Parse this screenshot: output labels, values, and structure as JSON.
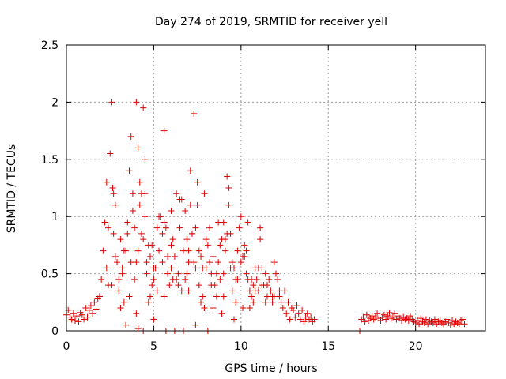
{
  "chart_data": {
    "type": "scatter",
    "title": "Day 274 of 2019, SRMTID for receiver yell",
    "xlabel": "GPS time / hours",
    "ylabel": "SRMTID / TECUs",
    "xlim": [
      0,
      24
    ],
    "ylim": [
      0,
      2.5
    ],
    "xticks": [
      0,
      5,
      10,
      15,
      20
    ],
    "yticks": [
      0,
      0.5,
      1,
      1.5,
      2,
      2.5
    ],
    "xtick_labels": [
      "0",
      "5",
      "10",
      "15",
      "20"
    ],
    "ytick_labels": [
      "0",
      "0.5",
      "1",
      "1.5",
      "2",
      "2.5"
    ],
    "grid": true,
    "marker": "+",
    "color": "#dd0000",
    "series": [
      {
        "name": "SRMTID",
        "x": [
          0.0,
          0.1,
          0.2,
          0.3,
          0.4,
          0.5,
          0.6,
          0.7,
          0.8,
          0.9,
          1.0,
          1.1,
          1.2,
          1.3,
          1.4,
          1.5,
          1.6,
          1.7,
          1.8,
          1.9,
          2.0,
          2.1,
          2.2,
          2.3,
          2.4,
          2.5,
          2.6,
          2.7,
          2.8,
          2.9,
          3.0,
          3.1,
          3.2,
          3.3,
          3.4,
          3.5,
          3.6,
          3.7,
          3.8,
          3.9,
          4.0,
          4.1,
          4.2,
          4.3,
          4.4,
          4.5,
          4.6,
          4.7,
          4.8,
          4.9,
          5.0,
          5.1,
          5.2,
          5.3,
          5.4,
          5.5,
          5.6,
          5.7,
          5.8,
          5.9,
          6.0,
          6.1,
          6.2,
          6.3,
          6.4,
          6.5,
          6.6,
          6.7,
          6.8,
          6.9,
          7.0,
          7.1,
          7.2,
          7.3,
          7.4,
          7.5,
          7.6,
          7.7,
          7.8,
          7.9,
          8.0,
          8.1,
          8.2,
          8.3,
          8.4,
          8.5,
          8.6,
          8.7,
          8.8,
          8.9,
          9.0,
          9.1,
          9.2,
          9.3,
          9.4,
          9.5,
          9.6,
          9.7,
          9.8,
          9.9,
          10.0,
          10.1,
          10.2,
          10.3,
          10.4,
          10.5,
          10.6,
          10.7,
          10.8,
          10.9,
          11.0,
          11.1,
          11.2,
          11.3,
          11.4,
          11.5,
          11.6,
          11.7,
          11.8,
          11.9,
          12.0,
          12.1,
          12.2,
          12.3,
          12.4,
          12.5,
          12.6,
          12.7,
          12.8,
          12.9,
          13.0,
          13.1,
          13.2,
          13.3,
          13.4,
          13.5,
          13.6,
          13.7,
          13.8,
          13.9,
          14.0,
          14.1,
          14.2,
          2.3,
          2.6,
          2.65,
          3.0,
          3.3,
          3.6,
          3.9,
          4.0,
          4.2,
          4.4,
          4.5,
          4.8,
          5.0,
          5.5,
          5.6,
          6.0,
          6.3,
          6.8,
          7.0,
          7.3,
          7.4,
          7.5,
          7.8,
          8.0,
          8.3,
          8.7,
          9.0,
          9.2,
          9.5,
          10.0,
          10.3,
          10.6,
          11.0,
          11.5,
          2.4,
          2.8,
          3.2,
          3.5,
          3.8,
          4.1,
          4.3,
          4.6,
          4.9,
          5.2,
          5.8,
          6.1,
          6.5,
          6.9,
          7.2,
          7.6,
          8.2,
          8.6,
          9.1,
          9.4,
          9.8,
          10.2,
          10.8,
          11.2,
          11.8,
          12.2,
          3.1,
          4.0,
          4.7,
          5.6,
          6.4,
          7.0,
          7.7,
          8.4,
          9.0,
          9.7,
          10.5,
          11.4,
          3.4,
          4.1,
          4.4,
          5.0,
          5.7,
          6.2,
          6.7,
          7.4,
          8.1,
          8.9,
          9.6,
          10.1,
          10.7,
          2.7,
          3.7,
          4.5,
          5.3,
          6.0,
          6.6,
          7.1,
          7.9,
          8.8,
          9.3,
          10.4,
          11.1,
          11.9,
          16.9,
          17.0,
          17.1,
          17.2,
          17.3,
          17.4,
          17.5,
          17.6,
          17.7,
          17.8,
          17.9,
          18.0,
          18.1,
          18.2,
          18.3,
          18.4,
          18.5,
          18.6,
          18.7,
          18.8,
          18.9,
          19.0,
          19.1,
          19.2,
          19.3,
          19.4,
          19.5,
          19.6,
          19.7,
          19.8,
          19.9,
          20.0,
          20.1,
          20.2,
          20.3,
          20.4,
          20.5,
          20.6,
          20.7,
          20.8,
          20.9,
          21.0,
          21.1,
          21.2,
          21.3,
          21.4,
          21.5,
          21.6,
          21.7,
          21.8,
          21.9,
          22.0,
          22.1,
          22.2,
          22.3,
          22.4,
          22.5,
          22.6,
          22.7,
          22.8,
          16.8
        ],
        "y": [
          0.14,
          0.18,
          0.12,
          0.1,
          0.15,
          0.09,
          0.13,
          0.08,
          0.16,
          0.14,
          0.1,
          0.2,
          0.12,
          0.18,
          0.22,
          0.15,
          0.25,
          0.19,
          0.28,
          0.3,
          0.45,
          0.7,
          0.95,
          1.3,
          0.4,
          1.55,
          2.0,
          0.85,
          1.1,
          0.6,
          0.35,
          0.8,
          0.5,
          0.25,
          0.7,
          0.95,
          0.3,
          0.6,
          1.2,
          0.45,
          2.0,
          1.6,
          1.3,
          0.85,
          1.95,
          1.0,
          0.5,
          0.75,
          0.3,
          0.4,
          0.45,
          0.55,
          0.35,
          0.7,
          1.0,
          0.6,
          1.75,
          0.9,
          0.5,
          0.4,
          0.55,
          0.8,
          0.65,
          1.2,
          0.5,
          0.9,
          0.35,
          0.7,
          0.45,
          0.8,
          0.6,
          1.4,
          0.85,
          1.9,
          0.55,
          1.3,
          0.4,
          0.65,
          0.3,
          0.2,
          0.55,
          0.75,
          0.9,
          0.5,
          0.65,
          0.4,
          0.3,
          0.6,
          0.45,
          0.8,
          0.95,
          0.7,
          1.35,
          1.1,
          0.85,
          0.6,
          0.55,
          0.45,
          0.7,
          0.9,
          1.0,
          0.65,
          0.75,
          0.5,
          0.45,
          0.35,
          0.3,
          0.4,
          0.55,
          0.45,
          0.35,
          0.8,
          0.55,
          0.4,
          0.5,
          0.3,
          0.45,
          0.35,
          0.25,
          0.3,
          0.5,
          0.45,
          0.3,
          0.25,
          0.2,
          0.35,
          0.15,
          0.25,
          0.1,
          0.2,
          0.18,
          0.12,
          0.22,
          0.15,
          0.1,
          0.18,
          0.08,
          0.12,
          0.15,
          0.1,
          0.12,
          0.08,
          0.1,
          0.55,
          0.4,
          1.25,
          0.45,
          0.7,
          1.4,
          0.9,
          0.6,
          1.1,
          0.8,
          1.5,
          0.65,
          0.55,
          0.85,
          0.95,
          0.75,
          0.45,
          1.05,
          0.7,
          0.6,
          0.9,
          1.1,
          0.55,
          0.8,
          0.4,
          0.95,
          0.5,
          0.85,
          0.35,
          0.6,
          0.7,
          0.45,
          0.55,
          0.4,
          0.9,
          0.65,
          0.55,
          0.85,
          1.05,
          0.7,
          1.2,
          0.6,
          0.75,
          0.9,
          0.65,
          0.45,
          1.15,
          0.5,
          0.85,
          0.7,
          0.6,
          0.5,
          0.8,
          0.55,
          0.45,
          0.65,
          0.35,
          0.4,
          0.3,
          0.35,
          0.2,
          0.15,
          0.25,
          0.3,
          0.4,
          0.35,
          0.25,
          0.2,
          0.3,
          0.25,
          0.2,
          0.25,
          0.05,
          0.02,
          0.0,
          0.1,
          0.0,
          0.0,
          0.0,
          0.05,
          0.0,
          0.15,
          0.1,
          0.2,
          0.25,
          1.2,
          1.7,
          1.2,
          1.0,
          1.05,
          1.15,
          1.1,
          1.2,
          0.75,
          1.25,
          0.95,
          0.9,
          0.6,
          0.1,
          0.12,
          0.08,
          0.14,
          0.09,
          0.11,
          0.13,
          0.1,
          0.12,
          0.15,
          0.11,
          0.09,
          0.12,
          0.14,
          0.1,
          0.13,
          0.16,
          0.11,
          0.12,
          0.15,
          0.1,
          0.13,
          0.11,
          0.09,
          0.12,
          0.1,
          0.11,
          0.09,
          0.13,
          0.1,
          0.08,
          0.07,
          0.09,
          0.06,
          0.11,
          0.08,
          0.07,
          0.1,
          0.06,
          0.09,
          0.08,
          0.07,
          0.1,
          0.06,
          0.08,
          0.09,
          0.07,
          0.06,
          0.08,
          0.1,
          0.07,
          0.05,
          0.09,
          0.06,
          0.08,
          0.07,
          0.06,
          0.09,
          0.1,
          0.06,
          0.0
        ]
      }
    ]
  }
}
